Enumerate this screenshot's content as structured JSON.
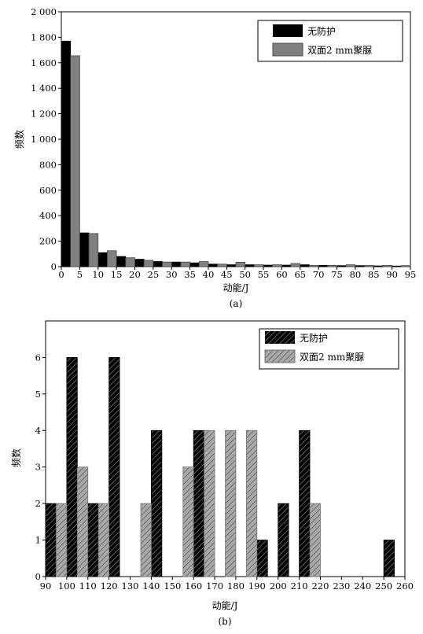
{
  "chart_data": [
    {
      "panel": "(a)",
      "type": "bar",
      "xlabel": "动能/J",
      "ylabel": "频数",
      "xlim": [
        0,
        95
      ],
      "ylim": [
        0,
        2000
      ],
      "bin_width": 5,
      "x_ticks": [
        "0",
        "5",
        "10",
        "15",
        "20",
        "25",
        "30",
        "35",
        "40",
        "45",
        "50",
        "55",
        "60",
        "65",
        "70",
        "75",
        "80",
        "85",
        "90",
        "95"
      ],
      "y_ticks": [
        {
          "value": 0,
          "label": "0"
        },
        {
          "value": 200,
          "label": "200"
        },
        {
          "value": 400,
          "label": "400"
        },
        {
          "value": 600,
          "label": "600"
        },
        {
          "value": 800,
          "label": "800"
        },
        {
          "value": 1000,
          "label": "1 000"
        },
        {
          "value": 1200,
          "label": "1 200"
        },
        {
          "value": 1400,
          "label": "1 400"
        },
        {
          "value": 1600,
          "label": "1 600"
        },
        {
          "value": 1800,
          "label": "1 800"
        },
        {
          "value": 2000,
          "label": "2 000"
        }
      ],
      "bins": [
        0,
        5,
        10,
        15,
        20,
        25,
        30,
        35,
        40,
        45,
        50,
        55,
        60,
        65,
        70,
        75,
        80,
        85,
        90
      ],
      "series": [
        {
          "name": "无防护",
          "color": "#000000",
          "pattern": "solid-black",
          "values": [
            1770,
            265,
            110,
            80,
            58,
            40,
            36,
            30,
            20,
            15,
            15,
            12,
            12,
            15,
            10,
            8,
            8,
            6,
            5
          ]
        },
        {
          "name": "双面2 mm聚脲",
          "color": "#808080",
          "pattern": "solid-gray",
          "values": [
            1655,
            260,
            125,
            70,
            50,
            36,
            36,
            40,
            20,
            35,
            15,
            15,
            25,
            10,
            10,
            15,
            10,
            10,
            8
          ]
        }
      ],
      "legend": "top-right"
    },
    {
      "panel": "(b)",
      "type": "bar",
      "xlabel": "动能/J",
      "ylabel": "频数",
      "xlim": [
        90,
        260
      ],
      "ylim": [
        0,
        7
      ],
      "bin_width": 10,
      "x_ticks": [
        "90",
        "100",
        "110",
        "120",
        "130",
        "140",
        "150",
        "160",
        "170",
        "180",
        "190",
        "200",
        "210",
        "220",
        "230",
        "240",
        "250",
        "260"
      ],
      "y_ticks": [
        {
          "value": 0,
          "label": "0"
        },
        {
          "value": 1,
          "label": "1"
        },
        {
          "value": 2,
          "label": "2"
        },
        {
          "value": 3,
          "label": "3"
        },
        {
          "value": 4,
          "label": "4"
        },
        {
          "value": 5,
          "label": "5"
        },
        {
          "value": 6,
          "label": "6"
        }
      ],
      "bins": [
        90,
        100,
        110,
        120,
        130,
        140,
        150,
        160,
        170,
        180,
        190,
        200,
        210,
        220,
        230,
        240,
        250
      ],
      "series": [
        {
          "name": "无防护",
          "color": "#000000",
          "pattern": "hatch-black",
          "values": [
            2,
            6,
            2,
            6,
            0,
            4,
            0,
            4,
            0,
            0,
            1,
            2,
            4,
            0,
            0,
            0,
            1
          ]
        },
        {
          "name": "双面2 mm聚脲",
          "color": "#808080",
          "pattern": "hatch-gray",
          "values": [
            2,
            3,
            2,
            0,
            2,
            0,
            3,
            4,
            4,
            4,
            0,
            0,
            2,
            0,
            0,
            0,
            0
          ]
        }
      ],
      "legend": "top-right"
    }
  ]
}
